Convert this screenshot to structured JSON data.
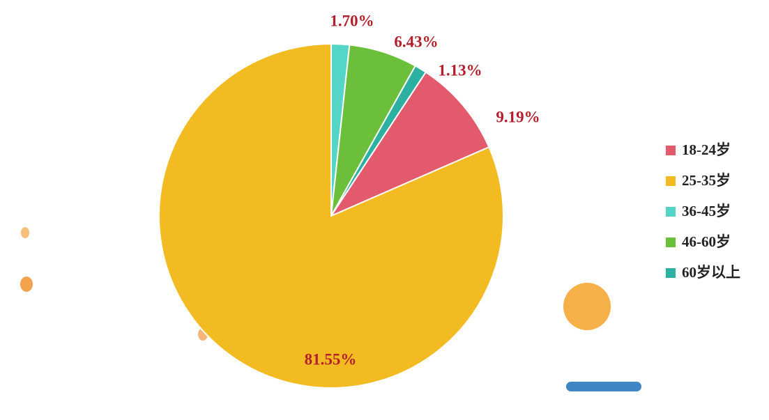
{
  "chart_data": {
    "type": "pie",
    "categories": [
      "18-24岁",
      "25-35岁",
      "36-45岁",
      "46-60岁",
      "60岁以上"
    ],
    "values": [
      9.19,
      81.55,
      1.7,
      6.43,
      1.13
    ],
    "value_labels": [
      "9.19%",
      "81.55%",
      "1.70%",
      "6.43%",
      "1.13%"
    ],
    "colors": [
      "#e35a6c",
      "#f2bb22",
      "#55d4c8",
      "#6cbf3a",
      "#2bb0a2"
    ],
    "legend": "right"
  }
}
